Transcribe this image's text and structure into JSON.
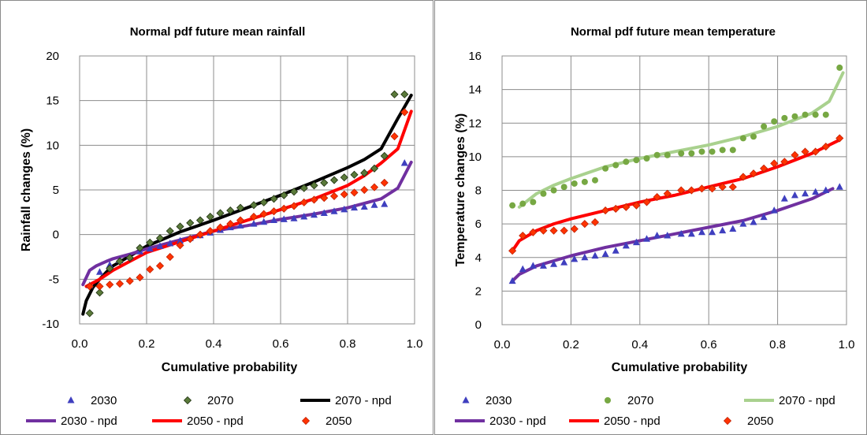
{
  "chart_data": [
    {
      "type": "scatter",
      "title": "Normal pdf future mean rainfall",
      "xlabel": "Cumulative probability",
      "ylabel": "Rainfall  changes (%)",
      "xlim": [
        0,
        1
      ],
      "ylim": [
        -10,
        20
      ],
      "x_ticks": [
        "0.0",
        "0.2",
        "0.4",
        "0.6",
        "0.8",
        "1.0"
      ],
      "y_ticks": [
        "-10",
        "-5",
        "0",
        "5",
        "10",
        "15",
        "20"
      ],
      "grid": true,
      "legend_position": "bottom",
      "legend_order": [
        "2030",
        "2070",
        "2070 - npd",
        "2030 - npd",
        "2050 - npd",
        "2050"
      ],
      "series": [
        {
          "name": "2030",
          "kind": "markers",
          "marker": "triangle",
          "color": "#3f3fbf",
          "x": [
            0.03,
            0.06,
            0.09,
            0.12,
            0.15,
            0.18,
            0.21,
            0.24,
            0.27,
            0.3,
            0.33,
            0.36,
            0.39,
            0.42,
            0.45,
            0.48,
            0.52,
            0.55,
            0.58,
            0.61,
            0.64,
            0.67,
            0.7,
            0.73,
            0.76,
            0.79,
            0.82,
            0.85,
            0.88,
            0.91,
            0.97
          ],
          "y": [
            -5.7,
            -4.2,
            -3.4,
            -2.9,
            -2.5,
            -1.9,
            -1.6,
            -1.3,
            -1.0,
            -0.7,
            -0.4,
            -0.1,
            0.2,
            0.5,
            0.8,
            1.0,
            1.2,
            1.4,
            1.6,
            1.7,
            1.8,
            2.0,
            2.2,
            2.4,
            2.6,
            2.8,
            3.0,
            3.1,
            3.3,
            3.4,
            8.0
          ]
        },
        {
          "name": "2070",
          "kind": "markers",
          "marker": "diamond",
          "color": "#5a7a3a",
          "x": [
            0.03,
            0.06,
            0.09,
            0.12,
            0.15,
            0.18,
            0.21,
            0.24,
            0.27,
            0.3,
            0.33,
            0.36,
            0.39,
            0.42,
            0.45,
            0.48,
            0.52,
            0.55,
            0.58,
            0.61,
            0.64,
            0.67,
            0.7,
            0.73,
            0.76,
            0.79,
            0.82,
            0.85,
            0.88,
            0.91,
            0.94,
            0.97
          ],
          "y": [
            -8.8,
            -6.5,
            -3.8,
            -3.0,
            -2.6,
            -1.5,
            -0.9,
            -0.4,
            0.4,
            0.9,
            1.3,
            1.6,
            2.0,
            2.4,
            2.7,
            3.0,
            3.3,
            3.6,
            4.0,
            4.4,
            4.8,
            5.2,
            5.5,
            5.8,
            6.1,
            6.4,
            6.7,
            6.9,
            7.4,
            8.8,
            15.7,
            15.7
          ]
        },
        {
          "name": "2070 - npd",
          "kind": "line",
          "color": "#000000",
          "x": [
            0.01,
            0.02,
            0.04,
            0.06,
            0.08,
            0.1,
            0.15,
            0.2,
            0.3,
            0.4,
            0.5,
            0.6,
            0.7,
            0.8,
            0.85,
            0.9,
            0.95,
            0.99
          ],
          "y": [
            -8.9,
            -7.4,
            -5.9,
            -5.0,
            -4.2,
            -3.5,
            -2.4,
            -1.3,
            0.3,
            1.6,
            3.0,
            4.4,
            5.9,
            7.5,
            8.4,
            9.6,
            13.0,
            15.6
          ]
        },
        {
          "name": "2030 - npd",
          "kind": "line",
          "color": "#7030a0",
          "x": [
            0.01,
            0.03,
            0.05,
            0.08,
            0.1,
            0.15,
            0.2,
            0.3,
            0.4,
            0.5,
            0.6,
            0.7,
            0.8,
            0.9,
            0.95,
            0.99
          ],
          "y": [
            -5.6,
            -4.0,
            -3.5,
            -3.0,
            -2.7,
            -2.2,
            -1.6,
            -0.6,
            0.4,
            1.0,
            1.7,
            2.3,
            3.0,
            4.0,
            5.2,
            8.1
          ]
        },
        {
          "name": "2050 - npd",
          "kind": "line",
          "color": "#ff0000",
          "x": [
            0.02,
            0.04,
            0.06,
            0.08,
            0.1,
            0.15,
            0.2,
            0.3,
            0.4,
            0.5,
            0.6,
            0.7,
            0.8,
            0.85,
            0.9,
            0.95,
            0.99
          ],
          "y": [
            -5.8,
            -5.4,
            -5.0,
            -4.5,
            -4.0,
            -3.0,
            -2.0,
            -0.8,
            0.4,
            1.6,
            2.8,
            4.0,
            5.5,
            6.6,
            8.0,
            9.6,
            13.8
          ]
        },
        {
          "name": "2050",
          "kind": "markers",
          "marker": "diamond",
          "color": "#ff3300",
          "x": [
            0.03,
            0.06,
            0.09,
            0.12,
            0.15,
            0.18,
            0.21,
            0.24,
            0.27,
            0.3,
            0.33,
            0.36,
            0.39,
            0.42,
            0.45,
            0.48,
            0.52,
            0.55,
            0.58,
            0.61,
            0.64,
            0.67,
            0.7,
            0.73,
            0.76,
            0.79,
            0.82,
            0.85,
            0.88,
            0.91,
            0.94,
            0.97
          ],
          "y": [
            -5.8,
            -5.8,
            -5.6,
            -5.5,
            -5.2,
            -4.8,
            -3.9,
            -3.5,
            -2.5,
            -1.2,
            -0.5,
            0.0,
            0.4,
            0.8,
            1.2,
            1.6,
            2.0,
            2.3,
            2.6,
            2.9,
            3.2,
            3.6,
            3.9,
            4.1,
            4.3,
            4.5,
            4.7,
            5.0,
            5.3,
            5.8,
            11.0,
            13.7
          ]
        }
      ]
    },
    {
      "type": "scatter",
      "title": "Normal pdf future mean temperature",
      "xlabel": "Cumulative probability",
      "ylabel": "Temperature  changes (%)",
      "xlim": [
        0,
        1
      ],
      "ylim": [
        0,
        16
      ],
      "x_ticks": [
        "0.0",
        "0.2",
        "0.4",
        "0.6",
        "0.8",
        "1.0"
      ],
      "y_ticks": [
        "0",
        "2",
        "4",
        "6",
        "8",
        "10",
        "12",
        "14",
        "16"
      ],
      "grid": true,
      "legend_position": "bottom",
      "legend_order": [
        "2030",
        "2070",
        "2070 - npd",
        "2030 - npd",
        "2050 - npd",
        "2050"
      ],
      "series": [
        {
          "name": "2030",
          "kind": "markers",
          "marker": "triangle",
          "color": "#3f3fbf",
          "x": [
            0.03,
            0.06,
            0.09,
            0.12,
            0.15,
            0.18,
            0.21,
            0.24,
            0.27,
            0.3,
            0.33,
            0.36,
            0.39,
            0.42,
            0.45,
            0.48,
            0.52,
            0.55,
            0.58,
            0.61,
            0.64,
            0.67,
            0.7,
            0.73,
            0.76,
            0.79,
            0.82,
            0.85,
            0.88,
            0.91,
            0.94,
            0.98
          ],
          "y": [
            2.6,
            3.3,
            3.5,
            3.5,
            3.6,
            3.7,
            3.9,
            4.0,
            4.1,
            4.2,
            4.4,
            4.7,
            4.9,
            5.1,
            5.3,
            5.3,
            5.4,
            5.4,
            5.5,
            5.5,
            5.6,
            5.7,
            6.0,
            6.1,
            6.4,
            6.8,
            7.5,
            7.7,
            7.8,
            7.9,
            8.0,
            8.2
          ]
        },
        {
          "name": "2070",
          "kind": "markers",
          "marker": "circle",
          "color": "#77a843",
          "x": [
            0.03,
            0.06,
            0.09,
            0.12,
            0.15,
            0.18,
            0.21,
            0.24,
            0.27,
            0.3,
            0.33,
            0.36,
            0.39,
            0.42,
            0.45,
            0.48,
            0.52,
            0.55,
            0.58,
            0.61,
            0.64,
            0.67,
            0.7,
            0.73,
            0.76,
            0.79,
            0.82,
            0.85,
            0.88,
            0.91,
            0.94,
            0.98
          ],
          "y": [
            7.1,
            7.2,
            7.3,
            7.8,
            8.0,
            8.2,
            8.4,
            8.5,
            8.6,
            9.3,
            9.5,
            9.7,
            9.8,
            9.9,
            10.1,
            10.1,
            10.2,
            10.2,
            10.3,
            10.3,
            10.4,
            10.4,
            11.1,
            11.2,
            11.8,
            12.1,
            12.3,
            12.4,
            12.5,
            12.5,
            12.5,
            15.3
          ]
        },
        {
          "name": "2070 - npd",
          "kind": "line",
          "color": "#a9d18e",
          "x": [
            0.05,
            0.1,
            0.15,
            0.2,
            0.3,
            0.4,
            0.5,
            0.6,
            0.7,
            0.8,
            0.9,
            0.95,
            0.99
          ],
          "y": [
            7.0,
            7.8,
            8.3,
            8.7,
            9.4,
            9.9,
            10.3,
            10.7,
            11.2,
            11.8,
            12.6,
            13.3,
            15.0
          ]
        },
        {
          "name": "2030 - npd",
          "kind": "line",
          "color": "#7030a0",
          "x": [
            0.03,
            0.05,
            0.1,
            0.15,
            0.2,
            0.3,
            0.4,
            0.5,
            0.6,
            0.7,
            0.8,
            0.9,
            0.96
          ],
          "y": [
            2.6,
            3.0,
            3.5,
            3.8,
            4.1,
            4.6,
            5.0,
            5.4,
            5.8,
            6.2,
            6.8,
            7.5,
            8.1
          ]
        },
        {
          "name": "2050 - npd",
          "kind": "line",
          "color": "#ff0000",
          "x": [
            0.03,
            0.05,
            0.1,
            0.15,
            0.2,
            0.3,
            0.4,
            0.5,
            0.6,
            0.7,
            0.8,
            0.9,
            0.98
          ],
          "y": [
            4.4,
            5.0,
            5.6,
            6.0,
            6.3,
            6.8,
            7.3,
            7.7,
            8.2,
            8.7,
            9.4,
            10.2,
            11.0
          ]
        },
        {
          "name": "2050",
          "kind": "markers",
          "marker": "diamond",
          "color": "#ff3300",
          "x": [
            0.03,
            0.06,
            0.09,
            0.12,
            0.15,
            0.18,
            0.21,
            0.24,
            0.27,
            0.3,
            0.33,
            0.36,
            0.39,
            0.42,
            0.45,
            0.48,
            0.52,
            0.55,
            0.58,
            0.61,
            0.64,
            0.67,
            0.7,
            0.73,
            0.76,
            0.79,
            0.82,
            0.85,
            0.88,
            0.91,
            0.94,
            0.98
          ],
          "y": [
            4.4,
            5.3,
            5.5,
            5.6,
            5.6,
            5.6,
            5.7,
            6.0,
            6.1,
            6.8,
            6.9,
            7.0,
            7.1,
            7.3,
            7.6,
            7.8,
            8.0,
            8.0,
            8.1,
            8.1,
            8.2,
            8.2,
            8.8,
            9.0,
            9.3,
            9.6,
            9.7,
            10.1,
            10.3,
            10.3,
            10.6,
            11.1
          ]
        }
      ]
    }
  ]
}
